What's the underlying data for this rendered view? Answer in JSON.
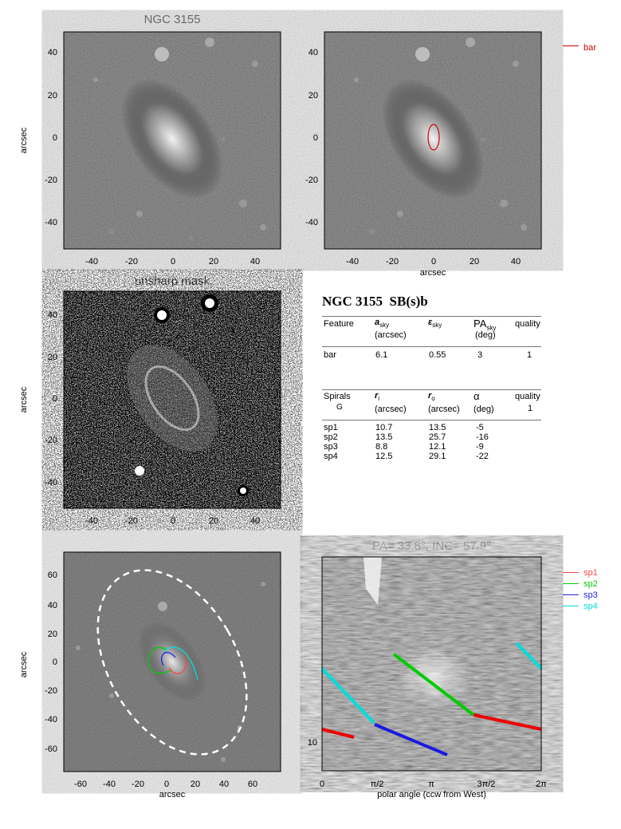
{
  "panels": {
    "top_left": {
      "title": "NGC 3155",
      "ylabel": "arcsec",
      "xticks": [
        "-40",
        "-20",
        "0",
        "20",
        "40"
      ],
      "yticks": [
        "40",
        "20",
        "0",
        "-20",
        "-40"
      ]
    },
    "top_right": {
      "xlabel": "arcsec",
      "xticks": [
        "-40",
        "-20",
        "0",
        "20",
        "40"
      ],
      "yticks": [
        "40",
        "20",
        "0",
        "-20",
        "-40"
      ],
      "legend": "bar",
      "legend_color": "#d00000"
    },
    "mid_left": {
      "title": "unsharp mask",
      "ylabel": "arcsec",
      "xticks": [
        "-40",
        "-20",
        "0",
        "20",
        "40"
      ],
      "yticks": [
        "40",
        "20",
        "0",
        "-20",
        "-40"
      ]
    },
    "bottom_left": {
      "ylabel": "arcsec",
      "xlabel": "arcsec",
      "xticks": [
        "-60",
        "-40",
        "-20",
        "0",
        "20",
        "40",
        "60"
      ],
      "yticks": [
        "60",
        "40",
        "20",
        "0",
        "-20",
        "-40",
        "-60"
      ]
    },
    "bottom_right": {
      "title": "PA=  33.8°, INC=  57.9°",
      "xlabel": "polar angle (ccw from West)",
      "xticks": [
        "0",
        "π/2",
        "π",
        "3π/2",
        "2π"
      ],
      "ytick": "10"
    }
  },
  "spiral_legend": [
    {
      "label": "sp1",
      "color": "#ff4444"
    },
    {
      "label": "sp2",
      "color": "#00cc00"
    },
    {
      "label": "sp3",
      "color": "#2222dd"
    },
    {
      "label": "sp4",
      "color": "#00dddd"
    }
  ],
  "table": {
    "heading": "NGC 3155  SB(s)b",
    "feature_header": {
      "feature": "Feature",
      "a": "a",
      "a_sub": "sky",
      "a_unit": "(arcsec)",
      "eps": "ε",
      "eps_sub": "sky",
      "pa": "PA",
      "pa_sub": "sky",
      "pa_unit": "(deg)",
      "quality": "quality"
    },
    "bar_row": {
      "name": "bar",
      "a": "6.1",
      "eps": "0.55",
      "pa": "3",
      "quality": "1"
    },
    "spiral_header": {
      "spirals": "Spirals",
      "g": "G",
      "ri": "r",
      "ri_sub": "i",
      "ri_unit": "(arcsec)",
      "ro": "r",
      "ro_sub": "o",
      "ro_unit": "(arcsec)",
      "alpha": "α",
      "alpha_unit": "(deg)",
      "quality": "quality",
      "quality_value": "1"
    },
    "spiral_rows": [
      {
        "name": "sp1",
        "ri": "10.7",
        "ro": "13.5",
        "alpha": "-5"
      },
      {
        "name": "sp2",
        "ri": "13.5",
        "ro": "25.7",
        "alpha": "-16"
      },
      {
        "name": "sp3",
        "ri": "8.8",
        "ro": "12.1",
        "alpha": "-9"
      },
      {
        "name": "sp4",
        "ri": "12.5",
        "ro": "29.1",
        "alpha": "-22"
      }
    ]
  }
}
